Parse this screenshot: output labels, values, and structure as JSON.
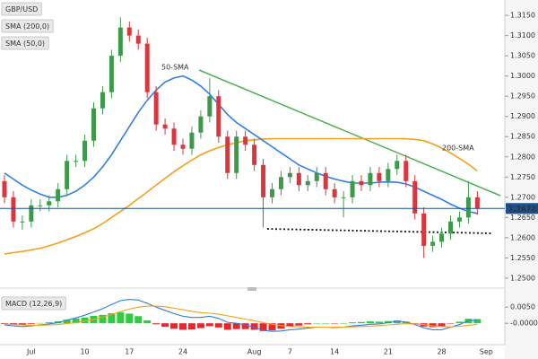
{
  "chart_data": [
    {
      "type": "candlestick",
      "title": "GBP/USD",
      "categories": [
        null,
        null,
        null,
        "Jul",
        null,
        null,
        null,
        null,
        null,
        "10",
        null,
        null,
        null,
        null,
        "17",
        null,
        null,
        null,
        null,
        null,
        "24",
        null,
        null,
        null,
        null,
        null,
        null,
        null,
        "Aug",
        null,
        null,
        null,
        "7",
        null,
        null,
        null,
        null,
        "14",
        null,
        null,
        null,
        null,
        null,
        "21",
        null,
        null,
        null,
        null,
        null,
        "28",
        null,
        null,
        null,
        null,
        "Sep"
      ],
      "open": [
        1.274,
        1.27,
        1.264,
        1.264,
        1.268,
        1.268,
        1.269,
        1.272,
        1.279,
        1.279,
        1.284,
        1.292,
        1.296,
        1.305,
        1.312,
        1.31,
        1.308,
        1.296,
        1.288,
        1.287,
        1.283,
        1.282,
        1.286,
        1.29,
        1.295,
        1.285,
        1.276,
        1.285,
        1.283,
        1.278,
        1.27,
        1.272,
        1.275,
        1.276,
        1.273,
        1.274,
        1.276,
        1.272,
        1.27,
        1.27,
        1.274,
        1.273,
        1.276,
        1.274,
        1.277,
        1.279,
        1.274,
        1.266,
        1.258,
        1.259,
        1.261,
        1.264,
        1.265,
        1.27,
        null
      ],
      "high": [
        1.2755,
        1.2715,
        1.2655,
        1.2695,
        1.2695,
        1.2705,
        1.2735,
        1.2805,
        1.2805,
        1.2855,
        1.2935,
        1.2975,
        1.3065,
        1.3145,
        1.3135,
        1.3115,
        1.3095,
        1.2975,
        1.2895,
        1.2885,
        1.2845,
        1.2875,
        1.2915,
        1.2995,
        1.2965,
        1.2865,
        1.2865,
        1.2865,
        1.2845,
        1.2795,
        1.2735,
        1.2765,
        1.2775,
        1.2775,
        1.2755,
        1.2775,
        1.2775,
        1.2735,
        1.2715,
        1.2755,
        1.2755,
        1.2775,
        1.2775,
        1.2785,
        1.2805,
        1.2805,
        1.2755,
        1.2675,
        1.2605,
        1.2625,
        1.2655,
        1.2665,
        1.274,
        1.2715,
        null
      ],
      "low": [
        1.2685,
        1.2625,
        1.262,
        1.2625,
        1.2665,
        1.2665,
        1.2675,
        1.2705,
        1.2775,
        1.2775,
        1.2825,
        1.2905,
        1.2945,
        1.3035,
        1.3085,
        1.3065,
        1.2945,
        1.2865,
        1.2855,
        1.2815,
        1.2805,
        1.2805,
        1.2845,
        1.2885,
        1.2835,
        1.2745,
        1.2745,
        1.2815,
        1.2765,
        1.2625,
        1.2685,
        1.2705,
        1.2735,
        1.2715,
        1.2715,
        1.2725,
        1.2705,
        1.2685,
        1.265,
        1.2685,
        1.2715,
        1.2715,
        1.2725,
        1.2725,
        1.2755,
        1.2725,
        1.2645,
        1.255,
        1.2565,
        1.2575,
        1.2595,
        1.2625,
        1.2635,
        1.2657,
        null
      ],
      "close": [
        1.27,
        1.264,
        1.264,
        1.268,
        1.268,
        1.269,
        1.272,
        1.279,
        1.279,
        1.284,
        1.292,
        1.296,
        1.305,
        1.312,
        1.31,
        1.308,
        1.296,
        1.288,
        1.287,
        1.283,
        1.282,
        1.286,
        1.29,
        1.295,
        1.285,
        1.276,
        1.285,
        1.283,
        1.278,
        1.27,
        1.272,
        1.275,
        1.276,
        1.273,
        1.274,
        1.276,
        1.272,
        1.27,
        1.27,
        1.274,
        1.273,
        1.276,
        1.274,
        1.277,
        1.279,
        1.274,
        1.266,
        1.258,
        1.259,
        1.261,
        1.264,
        1.265,
        1.27,
        1.2672,
        null
      ],
      "up_color": "#3d9a4a",
      "down_color": "#d9363e",
      "series": [
        {
          "name": "SMA (200,0)",
          "color": "#f5a01a",
          "values": [
            1.256,
            1.2563,
            1.2566,
            1.257,
            1.2574,
            1.258,
            1.2587,
            1.2595,
            1.2603,
            1.2612,
            1.2622,
            1.2635,
            1.265,
            1.2665,
            1.268,
            1.2697,
            1.2713,
            1.273,
            1.2747,
            1.2763,
            1.2778,
            1.2792,
            1.2805,
            1.2815,
            1.2823,
            1.283,
            1.2835,
            1.284,
            1.2842,
            1.2844,
            1.2845,
            1.2845,
            1.2845,
            1.2845,
            1.2845,
            1.2845,
            1.2845,
            1.2845,
            1.2845,
            1.2845,
            1.2845,
            1.2845,
            1.2845,
            1.2845,
            1.2845,
            1.2845,
            1.2843,
            1.284,
            1.2832,
            1.2822,
            1.281,
            1.2796,
            1.2782,
            1.2765,
            null
          ]
        },
        {
          "name": "SMA (50,0)",
          "color": "#2f7fe0",
          "values": [
            1.276,
            1.2745,
            1.273,
            1.2718,
            1.2708,
            1.27,
            1.27,
            1.2705,
            1.2715,
            1.273,
            1.275,
            1.2775,
            1.2805,
            1.284,
            1.2875,
            1.291,
            1.294,
            1.2965,
            1.2985,
            1.2995,
            1.3,
            1.299,
            1.2975,
            1.2955,
            1.293,
            1.2905,
            1.2885,
            1.287,
            1.2855,
            1.284,
            1.2825,
            1.281,
            1.2795,
            1.278,
            1.277,
            1.276,
            1.2752,
            1.2745,
            1.274,
            1.2735,
            1.2735,
            1.2735,
            1.2737,
            1.2738,
            1.2737,
            1.2733,
            1.2725,
            1.2715,
            1.2705,
            1.2695,
            1.2683,
            1.2673,
            1.2665,
            1.266,
            null
          ]
        }
      ],
      "annotations": [
        {
          "text": "50-SMA",
          "color": "#2f7fe0"
        },
        {
          "text": "200-SMA",
          "color": "#f5a01a"
        }
      ],
      "last_price": {
        "value": 1.26723,
        "label": "1.26723"
      },
      "ylim": [
        1.2482,
        1.3188
      ],
      "yticks": [
        {
          "value": 1.315,
          "label": "1.3150"
        },
        {
          "value": 1.31,
          "label": "1.3100"
        },
        {
          "value": 1.305,
          "label": "1.3050"
        },
        {
          "value": 1.3,
          "label": "1.3000"
        },
        {
          "value": 1.295,
          "label": "1.2950"
        },
        {
          "value": 1.29,
          "label": "1.2900"
        },
        {
          "value": 1.285,
          "label": "1.2850"
        },
        {
          "value": 1.28,
          "label": "1.2800"
        },
        {
          "value": 1.275,
          "label": "1.2750"
        },
        {
          "value": 1.27,
          "label": "1.2700"
        },
        {
          "value": 1.265,
          "label": "1.2650"
        },
        {
          "value": 1.26,
          "label": "1.2600"
        },
        {
          "value": 1.255,
          "label": "1.2550"
        },
        {
          "value": 1.25,
          "label": "1.2500"
        }
      ]
    },
    {
      "type": "macd",
      "title": "MACD (12,26,9)",
      "series": [
        {
          "color": "#2f7fe0",
          "values": [
            -0.0005,
            -0.0008,
            -0.001,
            -0.0008,
            -0.0005,
            -0.0002,
            0.0002,
            0.001,
            0.0017,
            0.0025,
            0.0035,
            0.0045,
            0.0058,
            0.007,
            0.0074,
            0.0072,
            0.0062,
            0.005,
            0.004,
            0.003,
            0.0022,
            0.0018,
            0.0018,
            0.0022,
            0.0015,
            0.0003,
            0.0,
            -0.0005,
            -0.0012,
            -0.0022,
            -0.0025,
            -0.0024,
            -0.002,
            -0.0018,
            -0.0015,
            -0.0012,
            -0.0012,
            -0.0013,
            -0.0012,
            -0.0008,
            -0.0006,
            -0.0003,
            -0.0002,
            0.0002,
            0.0006,
            0.0004,
            -0.0004,
            -0.0014,
            -0.002,
            -0.002,
            -0.0012,
            -0.0004,
            0.0008,
            0.001,
            null
          ]
        },
        {
          "color": "#f5a01a",
          "values": [
            -0.0003,
            -0.0004,
            -0.0005,
            -0.0006,
            -0.0006,
            -0.0005,
            -0.0004,
            -0.0001,
            0.0002,
            0.0007,
            0.0012,
            0.0019,
            0.0027,
            0.0036,
            0.0044,
            0.005,
            0.0053,
            0.0053,
            0.0051,
            0.0047,
            0.0042,
            0.0037,
            0.0033,
            0.0031,
            0.0028,
            0.0023,
            0.0018,
            0.0013,
            0.0008,
            0.0002,
            -0.0003,
            -0.0007,
            -0.001,
            -0.0011,
            -0.0012,
            -0.0012,
            -0.0012,
            -0.0012,
            -0.0012,
            -0.0011,
            -0.001,
            -0.0009,
            -0.0007,
            -0.0005,
            -0.0003,
            -0.0001,
            -0.0002,
            -0.0004,
            -0.0008,
            -0.001,
            -0.0011,
            -0.0009,
            -0.0006,
            -0.0003,
            null
          ]
        }
      ],
      "histogram": {
        "up_color": "#2ecc40",
        "down_color": "#e8262c",
        "values": [
          -0.0002,
          -0.0004,
          -0.0005,
          -0.0002,
          0.0001,
          0.0003,
          0.0006,
          0.0011,
          0.0015,
          0.0018,
          0.0023,
          0.0026,
          0.0031,
          0.0034,
          0.003,
          0.0022,
          0.0009,
          -0.0003,
          -0.0011,
          -0.0017,
          -0.002,
          -0.0019,
          -0.0015,
          -0.0009,
          -0.0013,
          -0.002,
          -0.0018,
          -0.0018,
          -0.002,
          -0.0024,
          -0.0022,
          -0.0017,
          -0.001,
          -0.0007,
          -0.0003,
          0.0,
          0.0,
          -0.0001,
          0.0,
          0.0003,
          0.0004,
          0.0006,
          0.0005,
          0.0007,
          0.0009,
          0.0005,
          -0.0002,
          -0.001,
          -0.0012,
          -0.001,
          -0.0001,
          0.0005,
          0.0014,
          0.0013,
          null
        ]
      },
      "ylim": [
        -0.0055,
        0.0095
      ],
      "yticks": [
        {
          "value": 0.005,
          "label": "0.0050"
        },
        {
          "value": 0,
          "label": "-0.0000"
        }
      ]
    }
  ]
}
